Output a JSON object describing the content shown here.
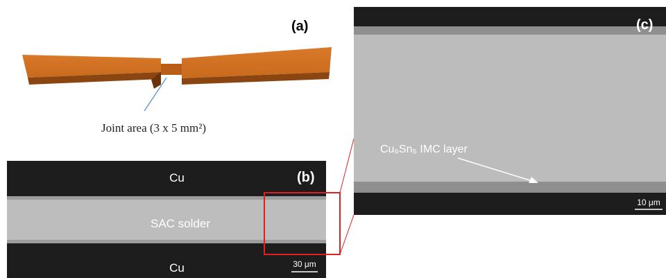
{
  "panel_a": {
    "label": "(a)",
    "caption": "Joint area (3 x 5 mm²)"
  },
  "panel_b": {
    "label": "(b)",
    "top_layer": "Cu",
    "middle_layer": "SAC solder",
    "bottom_layer": "Cu",
    "scale_bar": "30 μm"
  },
  "panel_c": {
    "label": "(c)",
    "annotation": "Cu₆Sn₅ IMC layer",
    "scale_bar": "10 μm"
  }
}
